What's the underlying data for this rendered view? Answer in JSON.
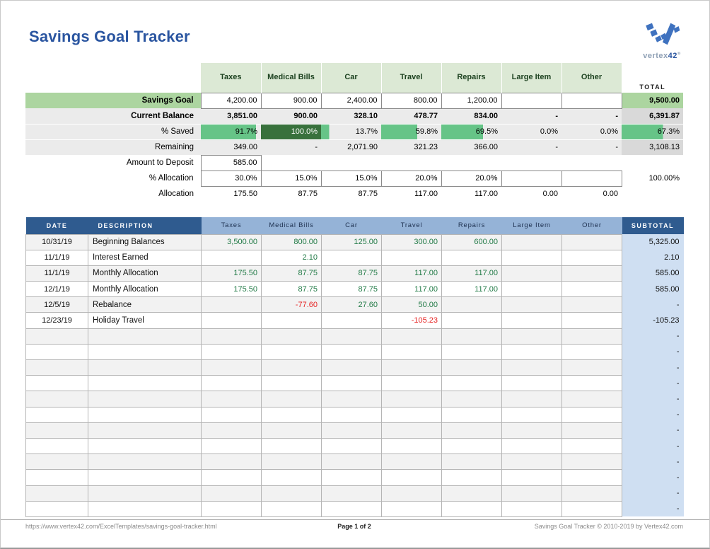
{
  "page": {
    "title": "Savings Goal Tracker",
    "logo": {
      "brand_gray": "vertex",
      "brand_blue": "42",
      "registered": "®"
    }
  },
  "summary": {
    "columns": [
      "Taxes",
      "Medical Bills",
      "Car",
      "Travel",
      "Repairs",
      "Large Item",
      "Other"
    ],
    "total_label": "TOTAL",
    "rows": {
      "savings_goal": {
        "label": "Savings Goal",
        "values": [
          "4,200.00",
          "900.00",
          "2,400.00",
          "800.00",
          "1,200.00",
          "",
          ""
        ],
        "total": "9,500.00"
      },
      "current_balance": {
        "label": "Current Balance",
        "values": [
          "3,851.00",
          "900.00",
          "328.10",
          "478.77",
          "834.00",
          "-",
          "-"
        ],
        "total": "6,391.87"
      },
      "pct_saved": {
        "label": "% Saved",
        "values": [
          {
            "text": "91.7%",
            "pct": 91.7
          },
          {
            "text": "100.0%",
            "pct": 100
          },
          {
            "text": "13.7%",
            "pct": 13.7
          },
          {
            "text": "59.8%",
            "pct": 59.8
          },
          {
            "text": "69.5%",
            "pct": 69.5
          },
          {
            "text": "0.0%",
            "pct": 0
          },
          {
            "text": "0.0%",
            "pct": 0
          }
        ],
        "total": {
          "text": "67.3%",
          "pct": 67.3
        }
      },
      "remaining": {
        "label": "Remaining",
        "values": [
          "349.00",
          "-",
          "2,071.90",
          "321.23",
          "366.00",
          "-",
          "-"
        ],
        "total": "3,108.13"
      },
      "amount_to_deposit": {
        "label": "Amount to Deposit",
        "value": "585.00"
      },
      "pct_allocation": {
        "label": "% Allocation",
        "values": [
          "30.0%",
          "15.0%",
          "15.0%",
          "20.0%",
          "20.0%",
          "",
          ""
        ],
        "total": "100.00%"
      },
      "allocation": {
        "label": "Allocation",
        "values": [
          "175.50",
          "87.75",
          "87.75",
          "117.00",
          "117.00",
          "0.00",
          "0.00"
        ],
        "total": ""
      }
    }
  },
  "transactions": {
    "headers": {
      "date": "DATE",
      "description": "DESCRIPTION",
      "categories": [
        "Taxes",
        "Medical Bills",
        "Car",
        "Travel",
        "Repairs",
        "Large Item",
        "Other"
      ],
      "subtotal": "SUBTOTAL"
    },
    "rows": [
      {
        "date": "10/31/19",
        "description": "Beginning Balances",
        "values": [
          "3,500.00",
          "800.00",
          "125.00",
          "300.00",
          "600.00",
          "",
          ""
        ],
        "subtotal": "5,325.00"
      },
      {
        "date": "11/1/19",
        "description": "Interest Earned",
        "values": [
          "",
          "2.10",
          "",
          "",
          "",
          "",
          ""
        ],
        "subtotal": "2.10"
      },
      {
        "date": "11/1/19",
        "description": "Monthly Allocation",
        "values": [
          "175.50",
          "87.75",
          "87.75",
          "117.00",
          "117.00",
          "",
          ""
        ],
        "subtotal": "585.00"
      },
      {
        "date": "12/1/19",
        "description": "Monthly Allocation",
        "values": [
          "175.50",
          "87.75",
          "87.75",
          "117.00",
          "117.00",
          "",
          ""
        ],
        "subtotal": "585.00"
      },
      {
        "date": "12/5/19",
        "description": "Rebalance",
        "values": [
          "",
          "-77.60",
          "27.60",
          "50.00",
          "",
          "",
          ""
        ],
        "subtotal": "-"
      },
      {
        "date": "12/23/19",
        "description": "Holiday Travel",
        "values": [
          "",
          "",
          "",
          "-105.23",
          "",
          "",
          ""
        ],
        "subtotal": "-105.23"
      }
    ],
    "empty_row_count": 12,
    "empty_row_subtotal": "-"
  },
  "footer": {
    "left": "https://www.vertex42.com/ExcelTemplates/savings-goal-tracker.html",
    "center": "Page 1 of 2",
    "right": "Savings Goal Tracker © 2010-2019 by Vertex42.com"
  },
  "colors": {
    "title_blue": "#2a55a0",
    "header_green_bg": "#dce9d5",
    "header_green_text": "#1d4220",
    "label_green": "#acd5a0",
    "band_gray": "#ebebeb",
    "band_total_gray": "#d9d9d9",
    "bar_green": "#66c487",
    "bar_dark_green": "#38713c",
    "blue_dark": "#2f5b8f",
    "blue_light": "#95b3d7",
    "subtotal_blue": "#cfdff2",
    "alt_row_gray": "#f2f2f2",
    "value_green": "#217a46",
    "value_red": "#e62222"
  }
}
